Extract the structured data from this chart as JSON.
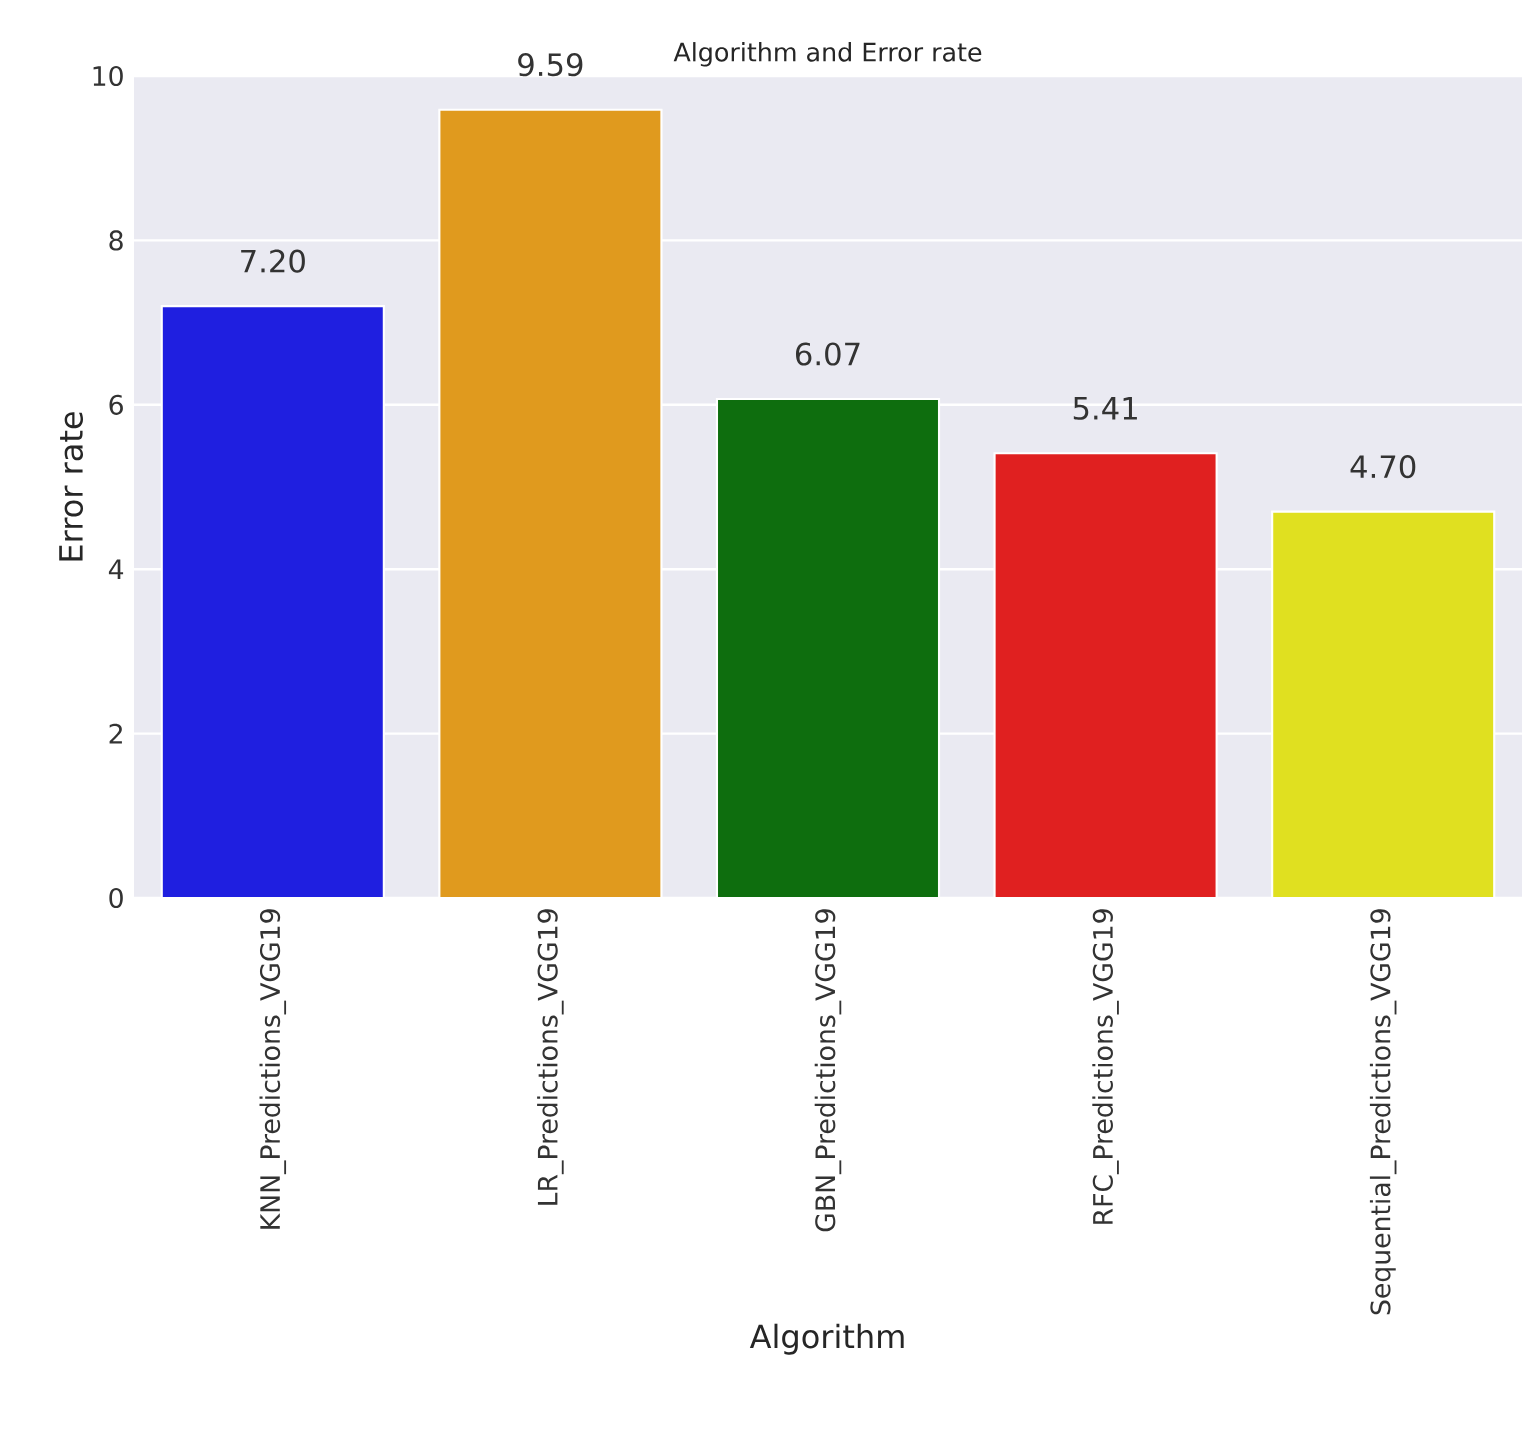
{
  "chart_data": {
    "type": "bar",
    "title": "Algorithm and Error rate",
    "xlabel": "Algorithm",
    "ylabel": "Error rate",
    "categories": [
      "KNN_Predictions_VGG19",
      "LR_Predictions_VGG19",
      "GBN_Predictions_VGG19",
      "RFC_Predictions_VGG19",
      "Sequential_Predictions_VGG19"
    ],
    "values": [
      7.2,
      9.59,
      6.07,
      5.41,
      4.7
    ],
    "value_labels": [
      "7.20",
      "9.59",
      "6.07",
      "5.41",
      "4.70"
    ],
    "colors": [
      "#1f1fe0",
      "#e09a1e",
      "#0e6e0e",
      "#e02020",
      "#e0e020"
    ],
    "ylim": [
      0,
      10
    ],
    "yticks": [
      0,
      2,
      4,
      6,
      8,
      10
    ],
    "grid": "y"
  }
}
